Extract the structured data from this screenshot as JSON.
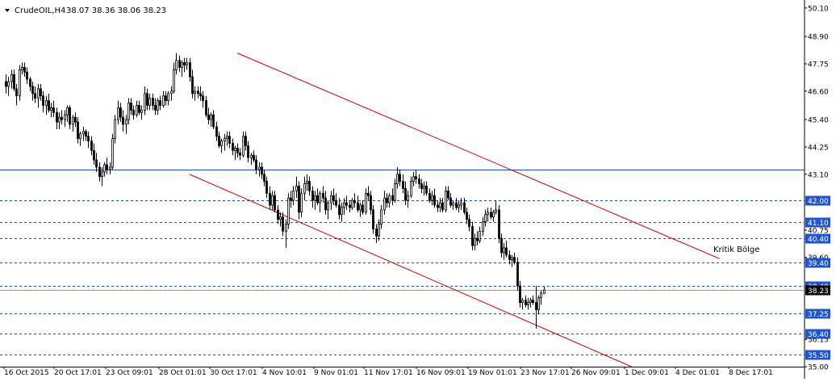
{
  "header": {
    "symbol": "CrudeOIL,H4",
    "ohlc": "38.07 38.36 38.06 38.23",
    "menu_icon": "triangle-down-icon"
  },
  "annotation": {
    "text": "Kritik Bölge"
  },
  "colors": {
    "background": "#ffffff",
    "candle": "#000000",
    "channel": "#cc0000",
    "hline": "#1f4fa8",
    "level_label_bg": "#2255cc",
    "level_label_text": "#ffffff",
    "current_price_bg": "#000000"
  },
  "chart_data": {
    "type": "candlestick",
    "title": "CrudeOIL,H4",
    "ylim": [
      35.0,
      50.3
    ],
    "grid": false,
    "y_ticks": [
      "50.10",
      "48.90",
      "47.75",
      "46.60",
      "45.40",
      "44.25",
      "43.10",
      "40.75",
      "39.60",
      "36.15",
      "35.00"
    ],
    "x_ticks": [
      "16 Oct 2015",
      "20 Oct 17:01",
      "23 Oct 09:01",
      "28 Oct 01:01",
      "30 Oct 17:01",
      "4 Nov 10:01",
      "9 Nov 01:01",
      "11 Nov 17:01",
      "16 Nov 09:01",
      "19 Nov 01:01",
      "23 Nov 17:01",
      "26 Nov 09:01",
      "1 Dec 09:01",
      "4 Dec 01:01",
      "8 Dec 17:01"
    ],
    "horizontal_levels": [
      {
        "value": 43.3,
        "label": "",
        "style": "solid"
      },
      {
        "value": 42.0,
        "label": "42.00",
        "style": "dashed"
      },
      {
        "value": 41.1,
        "label": "41.10",
        "style": "dashed"
      },
      {
        "value": 40.4,
        "label": "40.40",
        "style": "dashed"
      },
      {
        "value": 39.4,
        "label": "39.40",
        "style": "dashed"
      },
      {
        "value": 38.4,
        "label": "38.40",
        "style": "dashed"
      },
      {
        "value": 37.25,
        "label": "37.25",
        "style": "dashed"
      },
      {
        "value": 36.4,
        "label": "36.40",
        "style": "dashed"
      },
      {
        "value": 35.5,
        "label": "35.50",
        "style": "dashed"
      }
    ],
    "current_price": {
      "value": 38.23,
      "label": "38.23"
    },
    "channel": {
      "upper": {
        "from": {
          "index": 87,
          "value": 48.2
        },
        "to": {
          "index": 268,
          "value": 39.55
        }
      },
      "lower": {
        "from": {
          "index": 69,
          "value": 43.1
        },
        "to": {
          "index": 235,
          "value": 35.0
        }
      }
    },
    "candles": [
      [
        47.0,
        47.3,
        46.5,
        46.8
      ],
      [
        46.8,
        47.2,
        46.4,
        47.0
      ],
      [
        47.0,
        47.5,
        46.7,
        47.3
      ],
      [
        47.3,
        47.5,
        46.6,
        46.7
      ],
      [
        46.7,
        46.9,
        46.0,
        46.4
      ],
      [
        46.4,
        47.7,
        46.2,
        47.5
      ],
      [
        47.5,
        47.8,
        47.3,
        47.6
      ],
      [
        47.6,
        47.8,
        47.2,
        47.4
      ],
      [
        47.4,
        47.6,
        46.9,
        47.1
      ],
      [
        47.1,
        47.2,
        46.6,
        46.8
      ],
      [
        46.8,
        47.0,
        46.2,
        46.5
      ],
      [
        46.5,
        46.8,
        46.1,
        46.3
      ],
      [
        46.3,
        46.9,
        45.9,
        46.7
      ],
      [
        46.7,
        46.9,
        46.2,
        46.4
      ],
      [
        46.4,
        46.6,
        45.7,
        46.0
      ],
      [
        46.0,
        46.4,
        45.6,
        46.2
      ],
      [
        46.2,
        46.5,
        45.7,
        45.8
      ],
      [
        45.8,
        46.1,
        45.5,
        45.9
      ],
      [
        45.9,
        46.2,
        45.5,
        45.7
      ],
      [
        45.7,
        45.9,
        45.0,
        45.3
      ],
      [
        45.3,
        45.7,
        45.0,
        45.5
      ],
      [
        45.5,
        45.8,
        45.2,
        45.4
      ],
      [
        45.4,
        45.8,
        45.1,
        45.6
      ],
      [
        45.6,
        46.0,
        45.3,
        45.9
      ],
      [
        45.9,
        46.0,
        45.0,
        45.2
      ],
      [
        45.2,
        45.6,
        44.9,
        45.5
      ],
      [
        45.5,
        45.7,
        45.1,
        45.3
      ],
      [
        45.3,
        45.5,
        44.4,
        44.6
      ],
      [
        44.6,
        44.9,
        44.3,
        44.8
      ],
      [
        44.8,
        45.1,
        44.5,
        44.9
      ],
      [
        44.9,
        45.0,
        44.5,
        44.7
      ],
      [
        44.7,
        44.9,
        44.2,
        44.5
      ],
      [
        44.5,
        44.7,
        43.9,
        44.1
      ],
      [
        44.1,
        44.4,
        43.5,
        43.7
      ],
      [
        43.7,
        44.0,
        43.2,
        43.4
      ],
      [
        43.4,
        43.6,
        42.8,
        43.0
      ],
      [
        43.0,
        43.4,
        42.6,
        43.2
      ],
      [
        43.2,
        43.6,
        43.0,
        43.5
      ],
      [
        43.5,
        43.8,
        43.1,
        43.3
      ],
      [
        43.3,
        43.6,
        43.1,
        43.4
      ],
      [
        43.4,
        44.8,
        43.3,
        44.6
      ],
      [
        44.6,
        45.6,
        44.4,
        45.4
      ],
      [
        45.4,
        46.2,
        45.2,
        45.9
      ],
      [
        45.9,
        46.1,
        45.3,
        45.5
      ],
      [
        45.5,
        45.8,
        44.9,
        45.2
      ],
      [
        45.2,
        45.6,
        44.8,
        45.4
      ],
      [
        45.4,
        46.3,
        45.2,
        46.1
      ],
      [
        46.1,
        46.3,
        45.6,
        45.8
      ],
      [
        45.8,
        46.0,
        45.4,
        45.6
      ],
      [
        45.6,
        46.2,
        45.5,
        46.0
      ],
      [
        46.0,
        46.2,
        45.6,
        45.7
      ],
      [
        45.7,
        46.0,
        45.4,
        45.8
      ],
      [
        45.8,
        46.8,
        45.6,
        46.5
      ],
      [
        46.5,
        46.7,
        45.8,
        46.0
      ],
      [
        46.0,
        46.5,
        45.8,
        46.3
      ],
      [
        46.3,
        46.5,
        45.8,
        46.0
      ],
      [
        46.0,
        46.3,
        45.6,
        45.8
      ],
      [
        45.8,
        46.3,
        45.6,
        46.2
      ],
      [
        46.2,
        46.4,
        45.8,
        46.0
      ],
      [
        46.0,
        46.6,
        45.9,
        46.4
      ],
      [
        46.4,
        46.6,
        46.0,
        46.2
      ],
      [
        46.2,
        46.6,
        46.0,
        46.5
      ],
      [
        46.5,
        46.8,
        46.2,
        46.6
      ],
      [
        46.6,
        47.8,
        46.5,
        47.5
      ],
      [
        47.5,
        48.2,
        47.3,
        47.9
      ],
      [
        47.9,
        48.1,
        47.4,
        47.6
      ],
      [
        47.6,
        47.9,
        47.2,
        47.8
      ],
      [
        47.8,
        48.0,
        47.4,
        47.7
      ],
      [
        47.7,
        48.0,
        47.5,
        47.8
      ],
      [
        47.8,
        48.0,
        47.0,
        47.2
      ],
      [
        47.2,
        47.5,
        46.3,
        46.5
      ],
      [
        46.5,
        46.8,
        46.2,
        46.6
      ],
      [
        46.6,
        46.8,
        46.3,
        46.5
      ],
      [
        46.5,
        46.8,
        46.2,
        46.4
      ],
      [
        46.4,
        46.6,
        45.9,
        46.2
      ],
      [
        46.2,
        46.4,
        45.5,
        45.6
      ],
      [
        45.6,
        45.9,
        45.2,
        45.4
      ],
      [
        45.4,
        45.7,
        45.1,
        45.6
      ],
      [
        45.6,
        45.8,
        45.0,
        45.1
      ],
      [
        45.1,
        45.3,
        44.5,
        44.7
      ],
      [
        44.7,
        44.9,
        44.2,
        44.3
      ],
      [
        44.3,
        44.6,
        44.0,
        44.5
      ],
      [
        44.5,
        44.8,
        44.1,
        44.6
      ],
      [
        44.6,
        44.9,
        44.3,
        44.7
      ],
      [
        44.7,
        44.9,
        44.2,
        44.4
      ],
      [
        44.4,
        44.6,
        43.9,
        44.1
      ],
      [
        44.1,
        44.3,
        43.7,
        44.2
      ],
      [
        44.2,
        44.4,
        43.8,
        44.0
      ],
      [
        44.0,
        44.2,
        43.7,
        43.9
      ],
      [
        43.9,
        44.9,
        43.8,
        44.7
      ],
      [
        44.7,
        44.9,
        44.1,
        44.3
      ],
      [
        44.3,
        44.5,
        43.6,
        43.8
      ],
      [
        43.8,
        44.0,
        43.5,
        43.9
      ],
      [
        43.9,
        44.1,
        43.6,
        43.7
      ],
      [
        43.7,
        43.9,
        43.1,
        43.3
      ],
      [
        43.3,
        43.6,
        43.0,
        43.4
      ],
      [
        43.4,
        43.6,
        42.9,
        43.1
      ],
      [
        43.1,
        43.3,
        42.6,
        42.8
      ],
      [
        42.8,
        43.0,
        42.1,
        42.3
      ],
      [
        42.3,
        42.6,
        41.6,
        41.8
      ],
      [
        41.8,
        42.4,
        41.6,
        42.2
      ],
      [
        42.2,
        42.4,
        41.5,
        41.6
      ],
      [
        41.6,
        41.8,
        41.0,
        41.2
      ],
      [
        41.2,
        41.5,
        40.9,
        41.3
      ],
      [
        41.3,
        41.5,
        40.5,
        40.7
      ],
      [
        40.7,
        41.2,
        40.0,
        41.0
      ],
      [
        41.0,
        42.3,
        40.8,
        42.1
      ],
      [
        42.1,
        42.4,
        41.7,
        42.0
      ],
      [
        42.0,
        42.6,
        41.8,
        42.4
      ],
      [
        42.4,
        43.0,
        42.1,
        42.6
      ],
      [
        42.6,
        42.8,
        41.2,
        41.5
      ],
      [
        41.5,
        42.5,
        41.3,
        42.3
      ],
      [
        42.3,
        43.0,
        42.0,
        42.7
      ],
      [
        42.7,
        43.1,
        42.4,
        42.8
      ],
      [
        42.8,
        43.0,
        42.2,
        42.4
      ],
      [
        42.4,
        42.6,
        41.7,
        42.0
      ],
      [
        42.0,
        42.4,
        41.6,
        42.2
      ],
      [
        42.2,
        42.5,
        41.8,
        41.9
      ],
      [
        41.9,
        42.4,
        41.5,
        42.3
      ],
      [
        42.3,
        42.6,
        41.9,
        42.1
      ],
      [
        42.1,
        42.4,
        41.4,
        41.6
      ],
      [
        41.6,
        42.0,
        41.2,
        41.9
      ],
      [
        41.9,
        42.4,
        41.6,
        42.2
      ],
      [
        42.2,
        42.5,
        41.8,
        42.0
      ],
      [
        42.0,
        42.3,
        41.7,
        41.8
      ],
      [
        41.8,
        42.1,
        41.2,
        41.4
      ],
      [
        41.4,
        41.9,
        41.1,
        41.7
      ],
      [
        41.7,
        42.1,
        41.4,
        41.9
      ],
      [
        41.9,
        42.2,
        41.6,
        41.8
      ],
      [
        41.8,
        42.0,
        41.5,
        41.7
      ],
      [
        41.7,
        42.1,
        41.6,
        42.0
      ],
      [
        42.0,
        42.3,
        41.7,
        41.9
      ],
      [
        41.9,
        42.2,
        41.5,
        41.6
      ],
      [
        41.6,
        41.9,
        41.3,
        41.8
      ],
      [
        41.8,
        42.0,
        41.4,
        41.5
      ],
      [
        41.5,
        42.5,
        41.4,
        42.3
      ],
      [
        42.3,
        42.6,
        42.0,
        42.2
      ],
      [
        42.2,
        42.4,
        41.4,
        41.6
      ],
      [
        41.6,
        41.8,
        40.6,
        40.8
      ],
      [
        40.8,
        41.0,
        40.2,
        40.5
      ],
      [
        40.5,
        41.2,
        40.3,
        41.0
      ],
      [
        41.0,
        41.8,
        40.8,
        41.6
      ],
      [
        41.6,
        42.4,
        41.4,
        42.1
      ],
      [
        42.1,
        42.3,
        41.7,
        41.9
      ],
      [
        41.9,
        42.3,
        41.7,
        42.2
      ],
      [
        42.2,
        42.5,
        41.8,
        42.0
      ],
      [
        42.0,
        42.9,
        41.9,
        42.7
      ],
      [
        42.7,
        43.4,
        42.5,
        43.1
      ],
      [
        43.1,
        43.3,
        42.6,
        42.8
      ],
      [
        42.8,
        43.1,
        42.3,
        42.5
      ],
      [
        42.5,
        42.8,
        41.8,
        42.0
      ],
      [
        42.0,
        42.4,
        41.7,
        42.2
      ],
      [
        42.2,
        43.0,
        42.1,
        42.8
      ],
      [
        42.8,
        43.2,
        42.6,
        43.0
      ],
      [
        43.0,
        43.3,
        42.7,
        42.9
      ],
      [
        42.9,
        43.1,
        42.5,
        42.7
      ],
      [
        42.7,
        42.9,
        42.3,
        42.5
      ],
      [
        42.5,
        42.8,
        42.2,
        42.6
      ],
      [
        42.6,
        42.8,
        42.2,
        42.3
      ],
      [
        42.3,
        42.5,
        41.9,
        42.0
      ],
      [
        42.0,
        42.4,
        41.8,
        42.2
      ],
      [
        42.2,
        42.5,
        41.7,
        41.8
      ],
      [
        41.8,
        42.0,
        41.5,
        41.7
      ],
      [
        41.7,
        42.1,
        41.5,
        41.9
      ],
      [
        41.9,
        42.1,
        41.5,
        41.6
      ],
      [
        41.6,
        42.6,
        41.5,
        42.4
      ],
      [
        42.4,
        42.6,
        42.0,
        42.1
      ],
      [
        42.1,
        42.3,
        41.7,
        41.8
      ],
      [
        41.8,
        42.0,
        41.6,
        41.9
      ],
      [
        41.9,
        42.1,
        41.6,
        41.7
      ],
      [
        41.7,
        42.0,
        41.5,
        41.8
      ],
      [
        41.8,
        42.1,
        41.6,
        41.9
      ],
      [
        41.9,
        42.1,
        41.4,
        41.5
      ],
      [
        41.5,
        41.7,
        41.0,
        41.2
      ],
      [
        41.2,
        41.4,
        40.7,
        40.9
      ],
      [
        40.9,
        41.1,
        39.9,
        40.1
      ],
      [
        40.1,
        40.6,
        39.9,
        40.4
      ],
      [
        40.4,
        40.7,
        40.1,
        40.3
      ],
      [
        40.3,
        40.9,
        40.2,
        40.7
      ],
      [
        40.7,
        41.3,
        40.5,
        41.1
      ],
      [
        41.1,
        41.6,
        40.9,
        41.4
      ],
      [
        41.4,
        41.7,
        41.1,
        41.5
      ],
      [
        41.5,
        41.7,
        41.2,
        41.3
      ],
      [
        41.3,
        41.6,
        41.1,
        41.5
      ],
      [
        41.5,
        42.0,
        41.4,
        41.6
      ],
      [
        41.6,
        41.8,
        40.2,
        40.4
      ],
      [
        40.4,
        40.6,
        39.6,
        39.8
      ],
      [
        39.8,
        40.2,
        39.5,
        40.0
      ],
      [
        40.0,
        40.3,
        39.6,
        39.7
      ],
      [
        39.7,
        39.9,
        39.3,
        39.5
      ],
      [
        39.5,
        39.7,
        39.2,
        39.6
      ],
      [
        39.6,
        39.8,
        39.3,
        39.4
      ],
      [
        39.4,
        39.6,
        38.2,
        38.4
      ],
      [
        38.4,
        38.6,
        37.5,
        37.7
      ],
      [
        37.7,
        37.9,
        37.4,
        37.8
      ],
      [
        37.8,
        38.0,
        37.5,
        37.6
      ],
      [
        37.6,
        37.9,
        37.4,
        37.7
      ],
      [
        37.7,
        37.9,
        37.5,
        37.8
      ],
      [
        37.8,
        38.0,
        37.6,
        37.7
      ],
      [
        37.7,
        38.4,
        36.6,
        37.4
      ],
      [
        37.4,
        38.0,
        37.2,
        37.9
      ],
      [
        37.9,
        38.2,
        37.6,
        38.1
      ],
      [
        38.07,
        38.36,
        38.06,
        38.23
      ]
    ]
  }
}
